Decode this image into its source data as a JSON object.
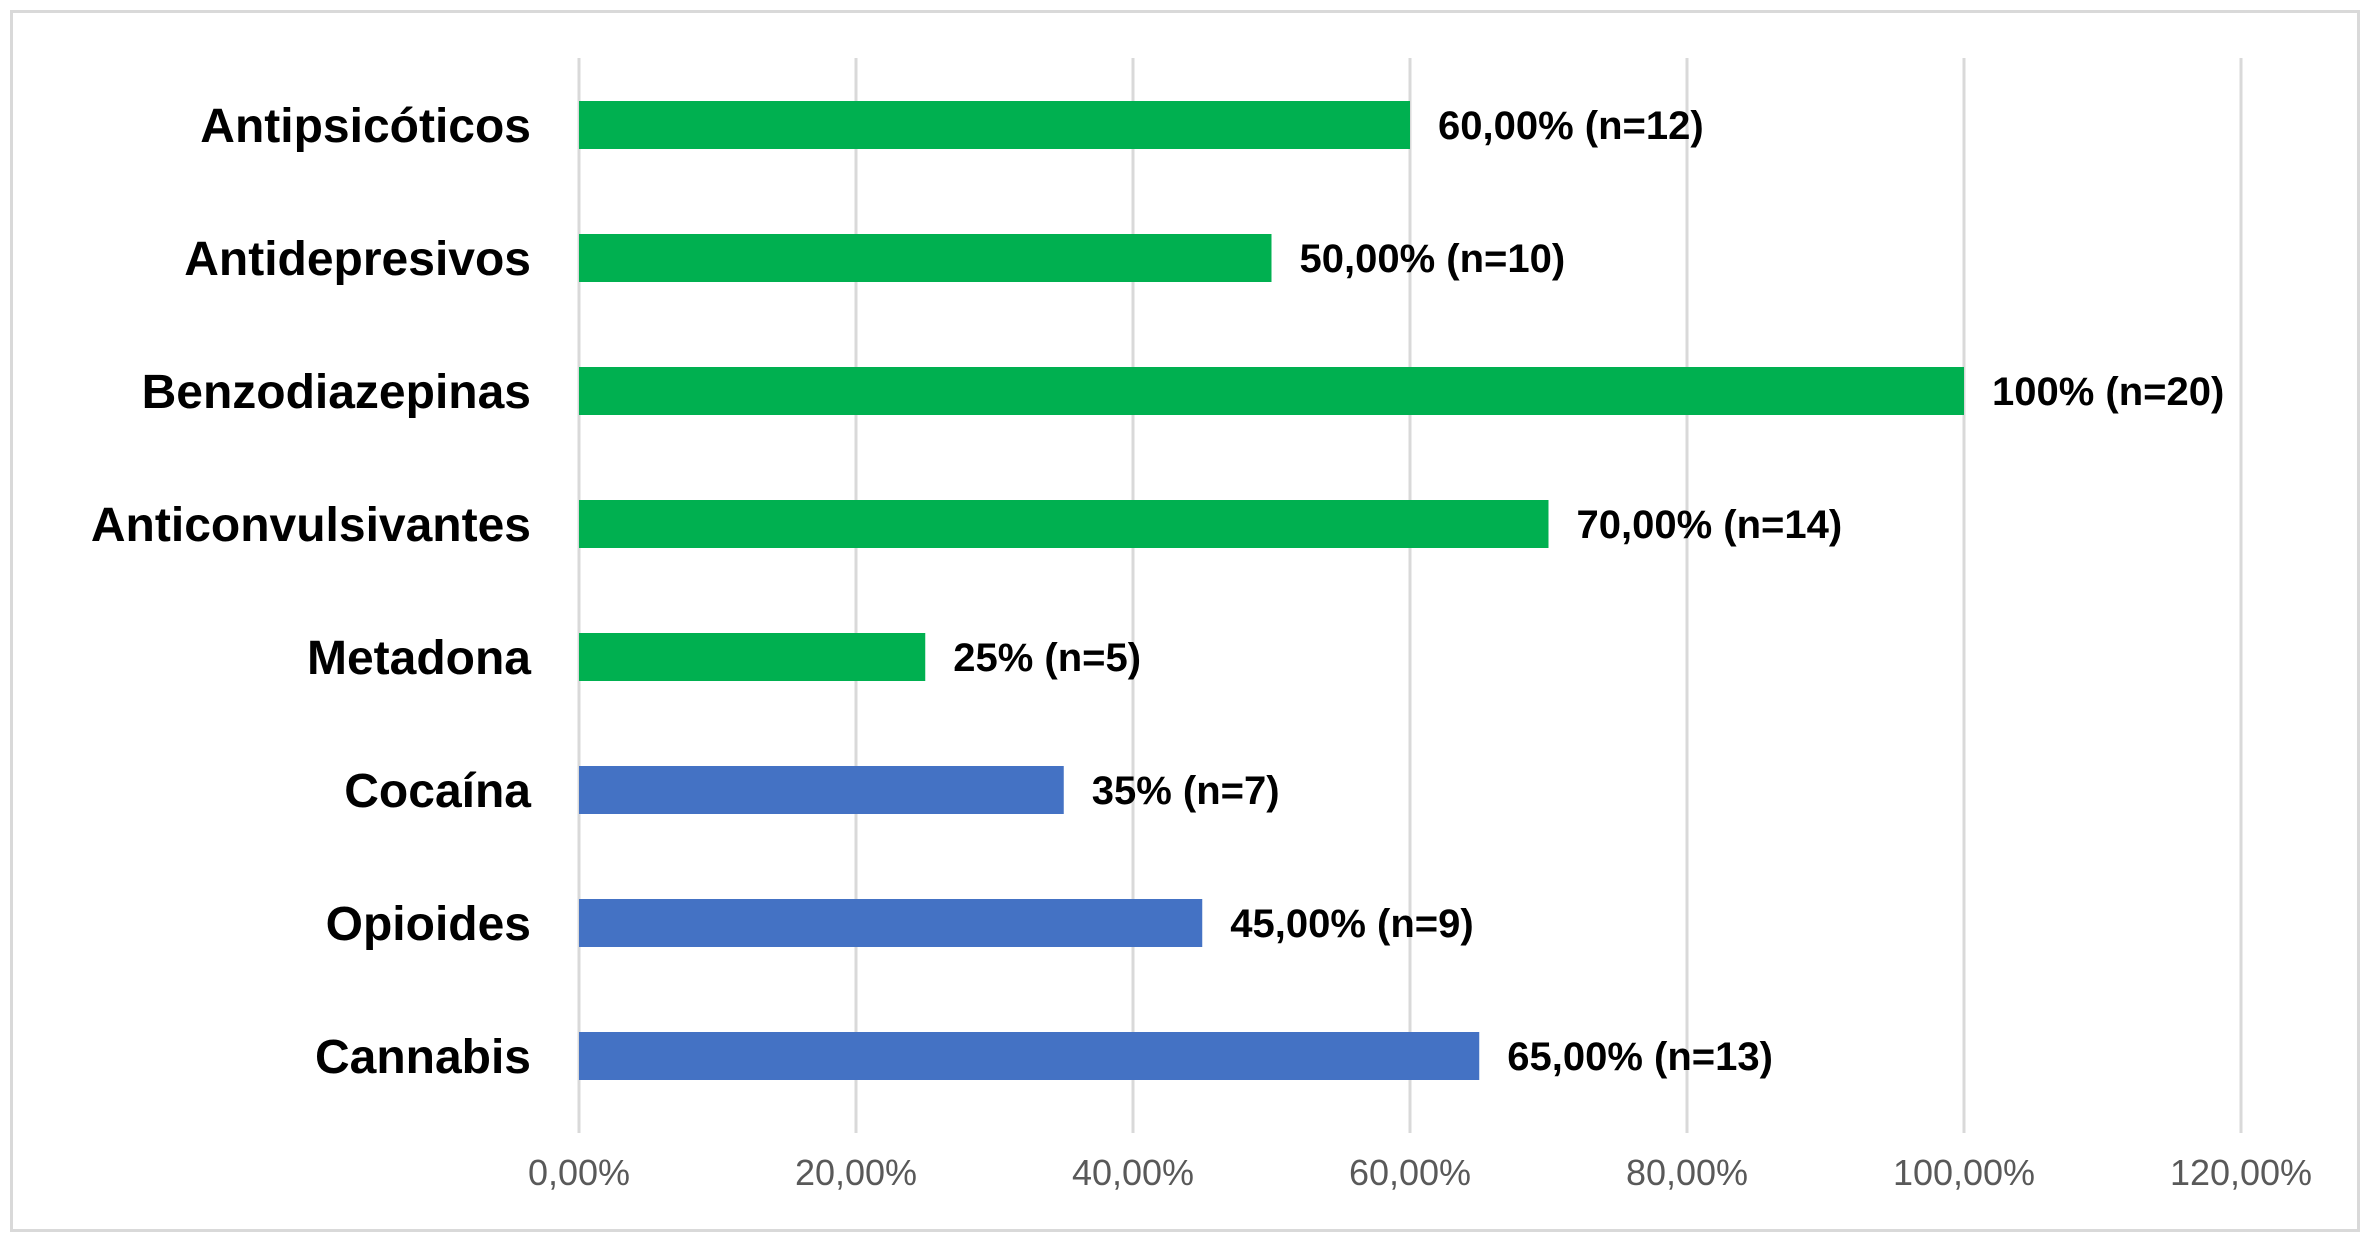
{
  "chart_data": {
    "type": "bar",
    "orientation": "horizontal",
    "title": "",
    "xlabel": "",
    "ylabel": "",
    "xlim": [
      0,
      120
    ],
    "x_ticks": [
      0,
      20,
      40,
      60,
      80,
      100,
      120
    ],
    "x_tick_labels": [
      "0,00%",
      "20,00%",
      "40,00%",
      "60,00%",
      "80,00%",
      "100,00%",
      "120,00%"
    ],
    "grid": true,
    "legend": "none",
    "colors": {
      "green": "#00b050",
      "blue": "#4472c4"
    },
    "categories": [
      "Antipsicóticos",
      "Antidepresivos",
      "Benzodiazepinas",
      "Anticonvulsivantes",
      "Metadona",
      "Cocaína",
      "Opioides",
      "Cannabis"
    ],
    "values": [
      60,
      50,
      100,
      70,
      25,
      35,
      45,
      65
    ],
    "bar_colors": [
      "#00b050",
      "#00b050",
      "#00b050",
      "#00b050",
      "#00b050",
      "#4472c4",
      "#4472c4",
      "#4472c4"
    ],
    "data_labels": [
      "60,00% (n=12)",
      "50,00% (n=10)",
      "100% (n=20)",
      "70,00% (n=14)",
      "25% (n=5)",
      "35% (n=7)",
      "45,00% (n=9)",
      "65,00% (n=13)"
    ]
  }
}
